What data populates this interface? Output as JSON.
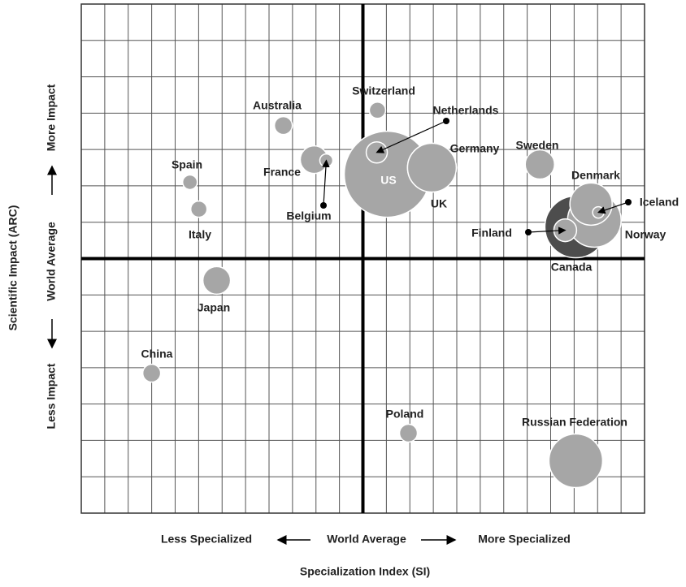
{
  "chart_data": {
    "type": "bubble",
    "x_axis": {
      "title": "Specialization Index (SI)",
      "low": "Less Specialized",
      "mid": "World Average",
      "high": "More Specialized"
    },
    "y_axis": {
      "title": "Scientific Impact (ARC)",
      "low": "Less Impact",
      "mid": "World Average",
      "high": "More Impact"
    },
    "xlim": [
      -12,
      12
    ],
    "ylim": [
      -7,
      7
    ],
    "grid": true,
    "labels": [
      "US",
      "Canada",
      "Norway",
      "Denmark",
      "Russian Federation",
      "Germany",
      "UK",
      "Sweden",
      "France",
      "Japan",
      "Finland",
      "Netherlands",
      "Australia",
      "China",
      "Poland",
      "Switzerland",
      "Italy",
      "Spain",
      "Belgium",
      "Iceland"
    ],
    "x": [
      1.04,
      9.07,
      9.86,
      9.72,
      9.07,
      2.94,
      2.94,
      7.54,
      -2.08,
      -6.23,
      8.62,
      0.59,
      -3.39,
      -9.0,
      1.94,
      0.62,
      -6.99,
      -7.37,
      -1.56,
      10.03
    ],
    "y": [
      2.32,
      0.87,
      1.05,
      1.5,
      -5.56,
      2.5,
      2.5,
      2.59,
      2.72,
      -0.6,
      0.78,
      2.92,
      3.66,
      -3.15,
      -4.8,
      4.08,
      1.36,
      2.1,
      2.7,
      1.27
    ],
    "sizes": [
      53,
      38,
      33,
      26,
      33,
      30,
      30,
      18,
      17,
      17,
      14,
      13,
      11,
      11,
      11,
      10,
      10,
      9,
      8,
      7
    ],
    "colors": [
      "#a6a6a6",
      "#4d4d4d",
      "#a6a6a6",
      "#a6a6a6",
      "#a6a6a6",
      "#a6a6a6",
      "#a6a6a6",
      "#a6a6a6",
      "#a6a6a6",
      "#a6a6a6",
      "#a6a6a6",
      "#a6a6a6",
      "#a6a6a6",
      "#a6a6a6",
      "#a6a6a6",
      "#a6a6a6",
      "#a6a6a6",
      "#a6a6a6",
      "#a6a6a6",
      "#a6a6a6"
    ]
  }
}
